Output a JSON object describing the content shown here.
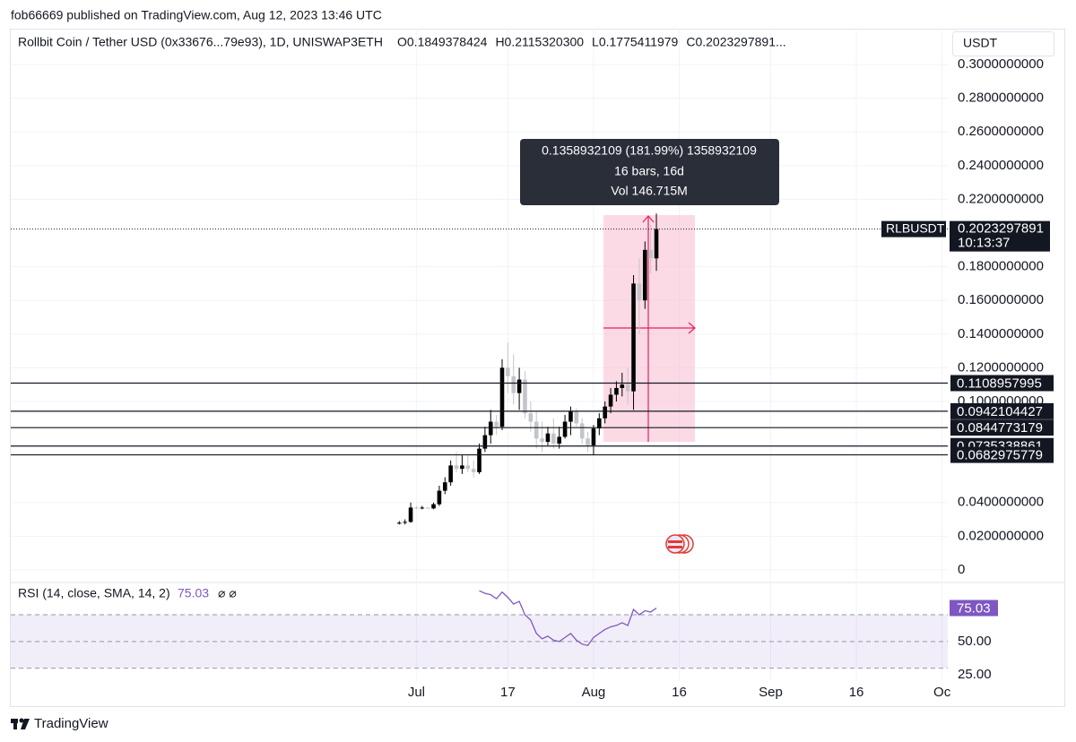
{
  "byline": "fob66669 published on TradingView.com, Aug 12, 2023 13:46 UTC",
  "brand": "TradingView",
  "chart_data": {
    "type": "candlestick",
    "title": "Rollbit Coin / Tether USD (0x33676...79e93), 1D, UNISWAP3ETH",
    "ohlc_legend": [
      "O0.1849378424",
      "H0.2115320300",
      "L0.1775411979",
      "C0.2023297891..."
    ],
    "currency": "USDT",
    "up_color": "#000000",
    "down_color": "#c3c5cb",
    "x": [
      "2023-06-28",
      "2023-06-29",
      "2023-06-30",
      "2023-07-01",
      "2023-07-02",
      "2023-07-03",
      "2023-07-04",
      "2023-07-05",
      "2023-07-06",
      "2023-07-07",
      "2023-07-08",
      "2023-07-09",
      "2023-07-10",
      "2023-07-11",
      "2023-07-12",
      "2023-07-13",
      "2023-07-14",
      "2023-07-15",
      "2023-07-16",
      "2023-07-17",
      "2023-07-18",
      "2023-07-19",
      "2023-07-20",
      "2023-07-21",
      "2023-07-22",
      "2023-07-23",
      "2023-07-24",
      "2023-07-25",
      "2023-07-26",
      "2023-07-27",
      "2023-07-28",
      "2023-07-29",
      "2023-07-30",
      "2023-07-31",
      "2023-08-01",
      "2023-08-02",
      "2023-08-03",
      "2023-08-04",
      "2023-08-05",
      "2023-08-06",
      "2023-08-07",
      "2023-08-08",
      "2023-08-09",
      "2023-08-10",
      "2023-08-11",
      "2023-08-12"
    ],
    "open": [
      0.0275,
      0.028,
      0.0285,
      0.037,
      0.0365,
      0.037,
      0.0365,
      0.039,
      0.047,
      0.052,
      0.062,
      0.06,
      0.062,
      0.06,
      0.058,
      0.072,
      0.08,
      0.088,
      0.085,
      0.12,
      0.115,
      0.105,
      0.113,
      0.093,
      0.088,
      0.078,
      0.076,
      0.081,
      0.075,
      0.079,
      0.088,
      0.094,
      0.087,
      0.078,
      0.074,
      0.084,
      0.09,
      0.097,
      0.104,
      0.108,
      0.11,
      0.106,
      0.17,
      0.16,
      0.19,
      0.1849378424
    ],
    "high": [
      0.029,
      0.03,
      0.04,
      0.038,
      0.038,
      0.037,
      0.04,
      0.05,
      0.055,
      0.065,
      0.07,
      0.068,
      0.068,
      0.065,
      0.075,
      0.085,
      0.095,
      0.092,
      0.125,
      0.135,
      0.128,
      0.12,
      0.118,
      0.1,
      0.094,
      0.088,
      0.085,
      0.09,
      0.085,
      0.092,
      0.097,
      0.096,
      0.09,
      0.082,
      0.086,
      0.093,
      0.1,
      0.108,
      0.112,
      0.117,
      0.12,
      0.175,
      0.185,
      0.195,
      0.205,
      0.21153203
    ],
    "low": [
      0.027,
      0.027,
      0.028,
      0.036,
      0.036,
      0.036,
      0.036,
      0.038,
      0.045,
      0.05,
      0.058,
      0.057,
      0.058,
      0.055,
      0.057,
      0.07,
      0.075,
      0.08,
      0.083,
      0.105,
      0.098,
      0.095,
      0.09,
      0.082,
      0.072,
      0.07,
      0.074,
      0.072,
      0.072,
      0.078,
      0.08,
      0.085,
      0.075,
      0.07,
      0.068,
      0.08,
      0.087,
      0.093,
      0.1,
      0.103,
      0.098,
      0.095,
      0.14,
      0.155,
      0.176,
      0.1775411979
    ],
    "close": [
      0.028,
      0.0285,
      0.037,
      0.0365,
      0.037,
      0.0365,
      0.039,
      0.047,
      0.052,
      0.062,
      0.06,
      0.062,
      0.06,
      0.058,
      0.072,
      0.08,
      0.088,
      0.085,
      0.12,
      0.115,
      0.105,
      0.113,
      0.093,
      0.088,
      0.078,
      0.076,
      0.081,
      0.075,
      0.079,
      0.088,
      0.094,
      0.087,
      0.078,
      0.074,
      0.084,
      0.09,
      0.097,
      0.104,
      0.108,
      0.11,
      0.106,
      0.17,
      0.16,
      0.19,
      0.1849378424,
      0.2023297891
    ],
    "xlim": [
      "2023-04-21",
      "2023-10-02"
    ],
    "xticks": [
      {
        "value": "2023-07-01",
        "label": "Jul"
      },
      {
        "value": "2023-07-17",
        "label": "17"
      },
      {
        "value": "2023-08-01",
        "label": "Aug"
      },
      {
        "value": "2023-08-16",
        "label": "16"
      },
      {
        "value": "2023-09-01",
        "label": "Sep"
      },
      {
        "value": "2023-09-16",
        "label": "16"
      },
      {
        "value": "2023-10-01",
        "label": "Oc"
      }
    ],
    "ylim": [
      -0.0064,
      0.3213
    ],
    "yticks": [
      0,
      {
        "value": 0.02,
        "label": "0.0200000000"
      },
      {
        "value": 0.04,
        "label": "0.0400000000"
      },
      {
        "value": 0.1,
        "label": "0.1000000000"
      },
      {
        "value": 0.12,
        "label": "0.1200000000"
      },
      {
        "value": 0.14,
        "label": "0.1400000000"
      },
      {
        "value": 0.16,
        "label": "0.1600000000"
      },
      {
        "value": 0.18,
        "label": "0.1800000000"
      },
      {
        "value": 0.22,
        "label": "0.2200000000"
      },
      {
        "value": 0.24,
        "label": "0.2400000000"
      },
      {
        "value": 0.26,
        "label": "0.2600000000"
      },
      {
        "value": 0.28,
        "label": "0.2800000000"
      },
      {
        "value": 0.3,
        "label": "0.3000000000"
      }
    ],
    "grid": true,
    "levels": [
      0.1108957995,
      0.0942104427,
      0.0844773179,
      0.0735338861,
      0.0682975779
    ],
    "last_price": {
      "symbol": "RLBUSDT",
      "label": "0.2023297891",
      "countdown": "10:13:37"
    },
    "measure": [
      "0.1358932109 (181.99%) 1358932109",
      "16 bars, 16d",
      "Vol 146.715M"
    ],
    "rsi": {
      "title": "RSI (14, close, SMA, 14, 2)",
      "icons": "⌀ ⌀",
      "color": "#7e57c2",
      "values": [
        null,
        null,
        null,
        null,
        null,
        null,
        null,
        null,
        null,
        null,
        null,
        null,
        null,
        null,
        88,
        86,
        85,
        82,
        87,
        83,
        78,
        80,
        70,
        66,
        56,
        52,
        54,
        51,
        50,
        53,
        56,
        51,
        48,
        47,
        53,
        56,
        59,
        61,
        62,
        64,
        62,
        74,
        70,
        73,
        72,
        75.03
      ],
      "ylim": [
        20.4,
        92.8
      ],
      "yticks": [
        {
          "value": 50,
          "label": "50.00"
        },
        {
          "value": 25,
          "label": "25.00"
        }
      ],
      "bands": [
        70,
        30
      ],
      "middle": 50
    }
  }
}
